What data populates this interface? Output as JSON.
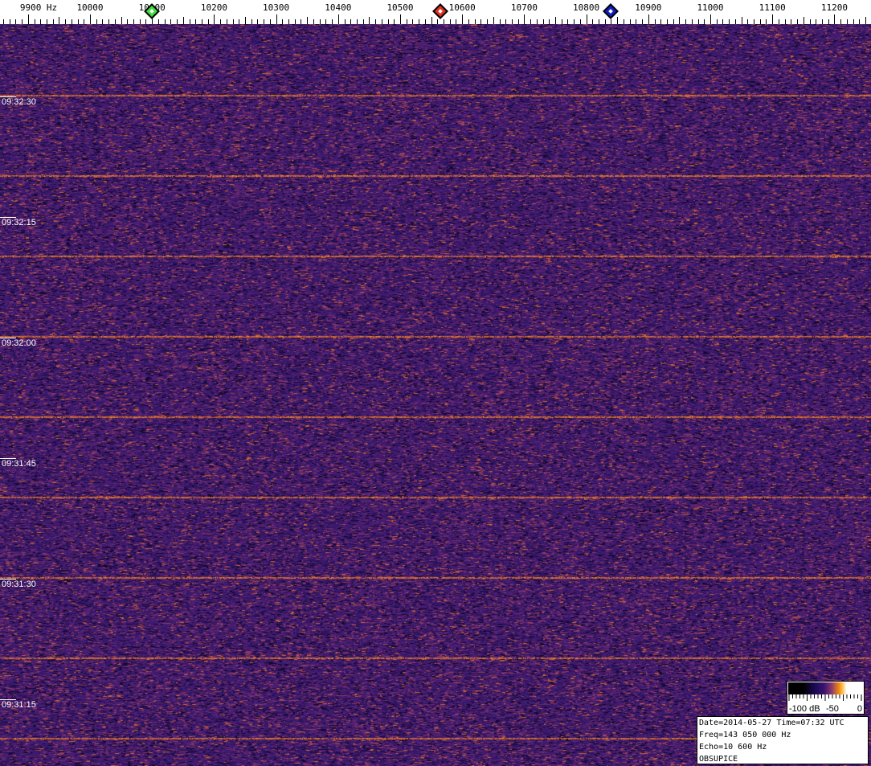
{
  "axis": {
    "unit_label": "9900 Hz",
    "ticks": [
      "10000",
      "10100",
      "10200",
      "10300",
      "10400",
      "10500",
      "10600",
      "10700",
      "10800",
      "10900",
      "11000",
      "11100",
      "11200"
    ]
  },
  "markers": [
    {
      "color": "#3fdc3f",
      "freq_hz": 10100
    },
    {
      "color": "#e03020",
      "freq_hz": 10565
    },
    {
      "color": "#1020c0",
      "freq_hz": 10840
    }
  ],
  "time_labels": [
    "09:32:30",
    "09:32:15",
    "09:32:00",
    "09:31:45",
    "09:31:30",
    "09:31:15"
  ],
  "colorbar": {
    "min_label": "-100 dB",
    "mid_label": "-50",
    "max_label": "0"
  },
  "info": {
    "date_line": "Date=2014-05-27 Time=07:32 UTC",
    "freq_line": "Freq=143 050 000 Hz",
    "echo_line": "Echo=10 600 Hz",
    "station": "OBSUPICE"
  },
  "colors": {
    "background_noise": "#3c1a6e",
    "signal": "#f0901c"
  }
}
